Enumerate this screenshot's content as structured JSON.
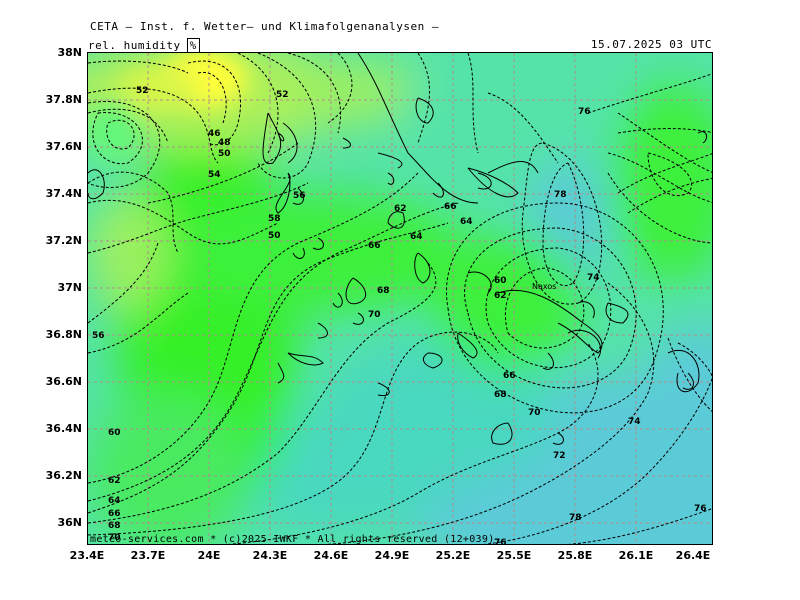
{
  "header": {
    "title": "CETA — Inst. f. Wetter— und Klimafolgenanalysen —",
    "parameter": "rel. humidity",
    "unit": "%",
    "datetime": "15.07.2025 03 UTC"
  },
  "footer": "meteo-services.com * (c)2025 IWKF * All rights reserved (12+039)",
  "axes": {
    "lat_labels": [
      "38N",
      "37.8N",
      "37.6N",
      "37.4N",
      "37.2N",
      "37N",
      "36.8N",
      "36.6N",
      "36.4N",
      "36.2N",
      "36N"
    ],
    "lon_labels": [
      "23.4E",
      "23.7E",
      "24E",
      "24.3E",
      "24.6E",
      "24.9E",
      "25.2E",
      "25.5E",
      "25.8E",
      "26.1E",
      "26.4E"
    ]
  },
  "place_labels": [
    "Naxos"
  ],
  "contour_labels": [
    "52",
    "52",
    "54",
    "56",
    "58",
    "50",
    "62",
    "66",
    "64",
    "64",
    "66",
    "68",
    "70",
    "60",
    "62",
    "66",
    "68",
    "70",
    "72",
    "74",
    "76",
    "78",
    "74",
    "76",
    "76",
    "78",
    "56",
    "60",
    "62",
    "64",
    "66",
    "68",
    "70",
    "48",
    "50",
    "46"
  ],
  "colors": {
    "very_dry": "#fffe3a",
    "dry": "#c8f24e",
    "moist_low": "#36f028",
    "moist": "#62f77a",
    "humid": "#49e0b6",
    "very_humid": "#5ccbd8",
    "grid": "#b48c8c"
  }
}
